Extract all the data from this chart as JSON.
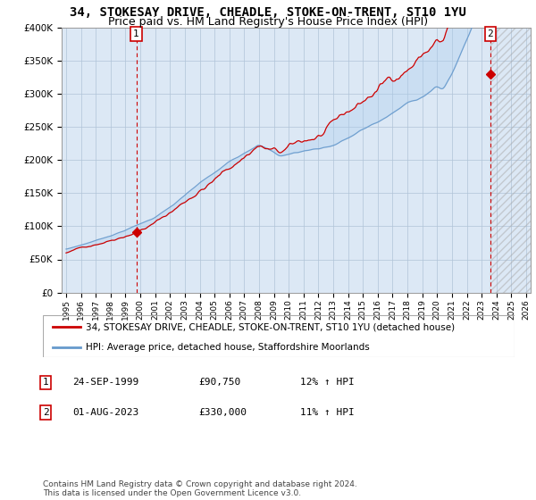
{
  "title": "34, STOKESAY DRIVE, CHEADLE, STOKE-ON-TRENT, ST10 1YU",
  "subtitle": "Price paid vs. HM Land Registry's House Price Index (HPI)",
  "ylim": [
    0,
    400000
  ],
  "yticks": [
    0,
    50000,
    100000,
    150000,
    200000,
    250000,
    300000,
    350000,
    400000
  ],
  "ytick_labels": [
    "£0",
    "£50K",
    "£100K",
    "£150K",
    "£200K",
    "£250K",
    "£300K",
    "£350K",
    "£400K"
  ],
  "background_color": "#e8f0f8",
  "plot_bg": "#dce8f5",
  "grid_color": "#b0c4d8",
  "sale1_date_num": 1999.73,
  "sale1_price": 90750,
  "sale1_label": "1",
  "sale2_date_num": 2023.583,
  "sale2_price": 330000,
  "sale2_label": "2",
  "legend_line1": "34, STOKESAY DRIVE, CHEADLE, STOKE-ON-TRENT, ST10 1YU (detached house)",
  "legend_line2": "HPI: Average price, detached house, Staffordshire Moorlands",
  "note1_date": "24-SEP-1999",
  "note1_price": "£90,750",
  "note1_hpi": "12% ↑ HPI",
  "note2_date": "01-AUG-2023",
  "note2_price": "£330,000",
  "note2_hpi": "11% ↑ HPI",
  "footer": "Contains HM Land Registry data © Crown copyright and database right 2024.\nThis data is licensed under the Open Government Licence v3.0.",
  "line_color_property": "#cc0000",
  "line_color_hpi": "#6699cc",
  "fill_color": "#aaccee",
  "vline_color": "#cc0000",
  "marker_color": "#cc0000",
  "title_fontsize": 10,
  "subtitle_fontsize": 9
}
